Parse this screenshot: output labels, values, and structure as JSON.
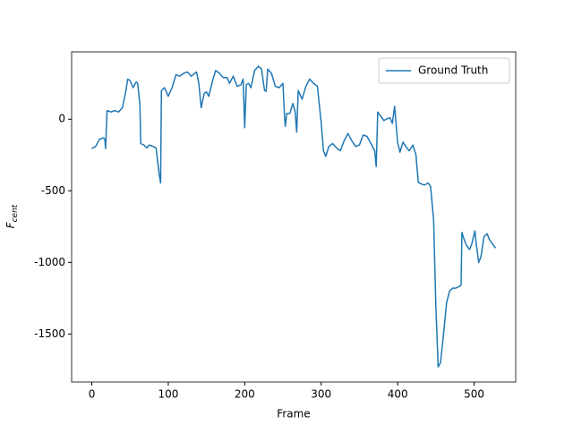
{
  "chart_data": {
    "type": "line",
    "xlabel": "Frame",
    "ylabel": "F",
    "ylabel_subscript": "cent",
    "xlim": [
      -26.4,
      554.4
    ],
    "xticks": [
      0,
      100,
      200,
      300,
      400,
      500
    ],
    "ylim": [
      -1835,
      470
    ],
    "yticks": [
      0,
      -500,
      -1000,
      -1500
    ],
    "legend": "upper right",
    "series": [
      {
        "name": "Ground Truth",
        "color": "#1f77b4",
        "x": [
          0,
          5,
          10,
          15,
          17,
          18,
          20,
          25,
          30,
          35,
          40,
          44,
          47,
          50,
          54,
          58,
          60,
          63,
          64,
          68,
          72,
          75,
          80,
          84,
          88,
          90,
          91,
          95,
          100,
          105,
          110,
          115,
          120,
          125,
          130,
          137,
          140,
          143,
          147,
          150,
          153,
          158,
          162,
          167,
          172,
          177,
          180,
          185,
          190,
          195,
          198,
          200,
          202,
          205,
          208,
          213,
          218,
          222,
          226,
          228,
          230,
          235,
          240,
          245,
          250,
          252,
          253,
          255,
          259,
          263,
          266,
          268,
          270,
          275,
          280,
          285,
          290,
          295,
          300,
          303,
          306,
          310,
          315,
          320,
          325,
          330,
          335,
          340,
          345,
          350,
          355,
          360,
          365,
          370,
          372,
          374,
          378,
          382,
          385,
          390,
          393,
          396,
          400,
          403,
          407,
          412,
          415,
          420,
          424,
          427,
          430,
          435,
          440,
          443,
          447,
          450,
          453,
          456,
          460,
          464,
          468,
          472,
          476,
          480,
          483,
          484,
          487,
          490,
          494,
          497,
          501,
          503,
          506,
          509,
          513,
          517,
          520,
          524,
          528
        ],
        "values": [
          -205,
          -190,
          -140,
          -130,
          -140,
          -205,
          60,
          50,
          60,
          50,
          80,
          180,
          280,
          270,
          220,
          260,
          250,
          100,
          -170,
          -180,
          -200,
          -180,
          -190,
          -200,
          -380,
          -445,
          200,
          220,
          160,
          220,
          310,
          300,
          320,
          330,
          300,
          330,
          250,
          80,
          180,
          190,
          160,
          270,
          340,
          320,
          290,
          290,
          250,
          300,
          230,
          240,
          280,
          -60,
          240,
          250,
          220,
          340,
          370,
          350,
          200,
          195,
          350,
          320,
          230,
          220,
          250,
          20,
          -50,
          40,
          40,
          110,
          50,
          -90,
          200,
          140,
          230,
          280,
          250,
          230,
          -20,
          -220,
          -260,
          -190,
          -170,
          -200,
          -220,
          -150,
          -100,
          -150,
          -190,
          -180,
          -110,
          -120,
          -170,
          -220,
          -330,
          50,
          20,
          -10,
          0,
          10,
          -30,
          90,
          -160,
          -230,
          -160,
          -200,
          -220,
          -180,
          -250,
          -440,
          -450,
          -460,
          -445,
          -470,
          -700,
          -1300,
          -1730,
          -1700,
          -1500,
          -1280,
          -1200,
          -1180,
          -1180,
          -1170,
          -1160,
          -790,
          -840,
          -880,
          -910,
          -870,
          -780,
          -880,
          -1000,
          -960,
          -820,
          -800,
          -840,
          -870,
          -900
        ]
      }
    ]
  }
}
